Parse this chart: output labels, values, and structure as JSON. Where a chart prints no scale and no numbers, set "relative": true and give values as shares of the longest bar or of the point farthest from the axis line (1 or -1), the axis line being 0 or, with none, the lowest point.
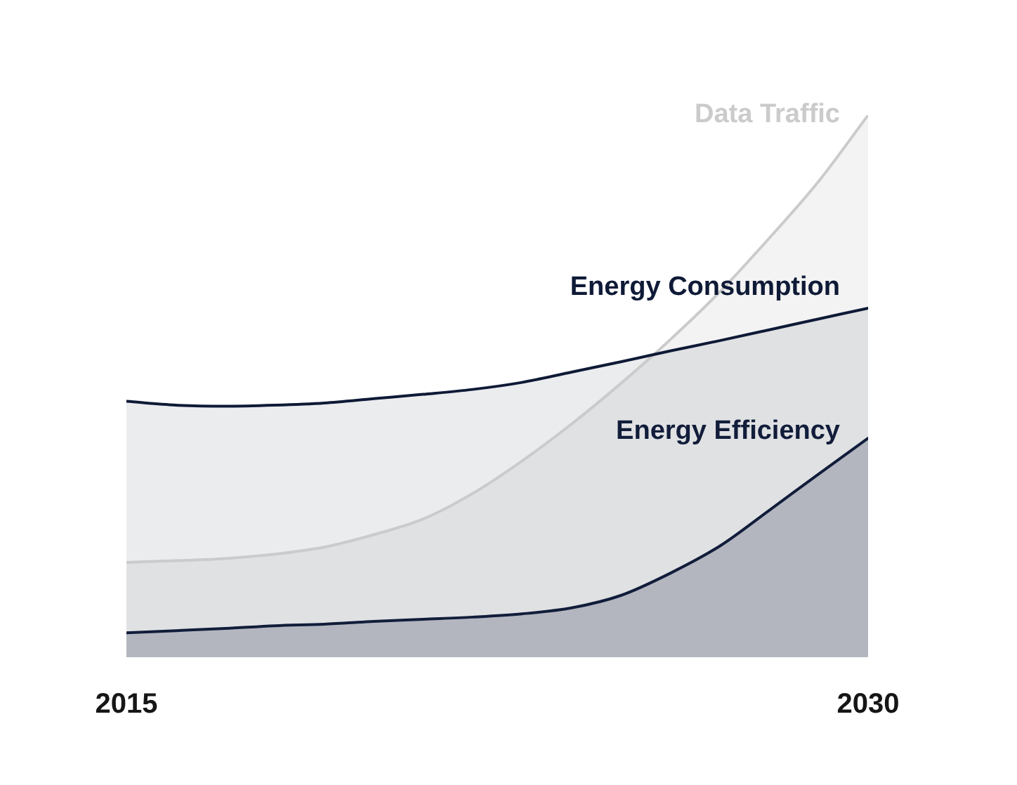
{
  "chart_data": {
    "type": "area",
    "relative": true,
    "legend": false,
    "marker": "none",
    "x": [
      2015,
      2016,
      2017,
      2018,
      2019,
      2020,
      2021,
      2022,
      2023,
      2024,
      2025,
      2026,
      2027,
      2028,
      2029,
      2030
    ],
    "xlim": [
      2015,
      2030
    ],
    "xticks": [
      2015,
      2030
    ],
    "series": [
      {
        "name": "Data Traffic",
        "color": "#cbcbcb",
        "values": [
          0.175,
          0.178,
          0.182,
          0.19,
          0.203,
          0.226,
          0.255,
          0.302,
          0.362,
          0.43,
          0.505,
          0.586,
          0.674,
          0.773,
          0.878,
          1.0
        ]
      },
      {
        "name": "Energy Consumption",
        "color": "#0e1a36",
        "values": [
          0.472,
          0.465,
          0.463,
          0.465,
          0.469,
          0.477,
          0.485,
          0.494,
          0.507,
          0.526,
          0.545,
          0.565,
          0.584,
          0.604,
          0.624,
          0.644
        ]
      },
      {
        "name": "Energy Efficiency",
        "color": "#111d3a",
        "values": [
          0.045,
          0.049,
          0.053,
          0.058,
          0.061,
          0.066,
          0.07,
          0.074,
          0.08,
          0.091,
          0.114,
          0.155,
          0.205,
          0.271,
          0.338,
          0.404
        ]
      }
    ]
  }
}
